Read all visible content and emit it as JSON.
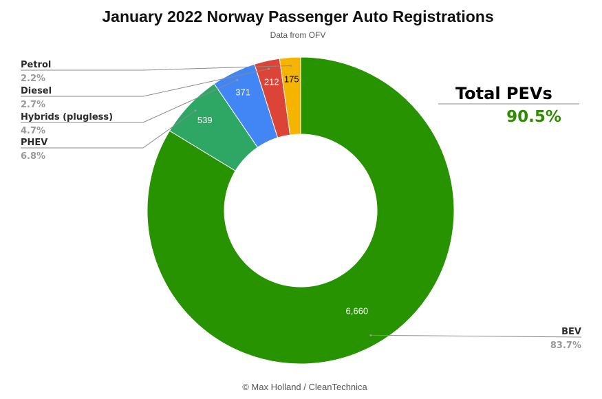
{
  "chart_data": {
    "type": "pie",
    "variant": "donut",
    "title": "January 2022 Norway Passenger Auto Registrations",
    "subtitle": "Data from OFV",
    "categories": [
      "BEV",
      "PHEV",
      "Hybrids (plugless)",
      "Diesel",
      "Petrol"
    ],
    "values": [
      6660,
      539,
      371,
      212,
      175
    ],
    "value_labels": [
      "6,660",
      "539",
      "371",
      "212",
      "175"
    ],
    "percent_labels": [
      "83.7%",
      "6.8%",
      "4.7%",
      "2.7%",
      "2.2%"
    ],
    "colors": [
      "#279300",
      "#2ea765",
      "#4285f4",
      "#db4437",
      "#f4b400"
    ],
    "label_colors": [
      "#ffffff",
      "#ffffff",
      "#ffffff",
      "#ffffff",
      "#000000"
    ],
    "legend_placement": "outside labels with leader lines"
  },
  "callout": {
    "label": "Total PEVs",
    "value": "90.5%"
  },
  "footer": "© Max Holland / CleanTechnica"
}
